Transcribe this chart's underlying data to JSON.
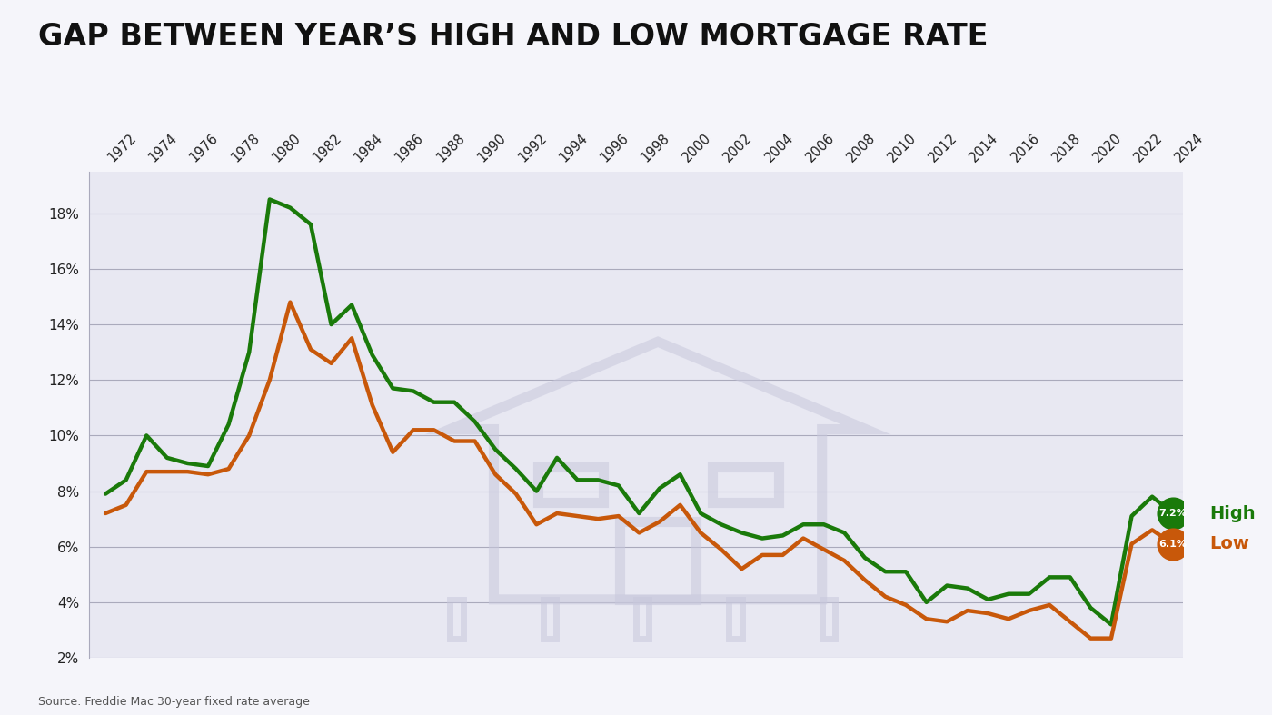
{
  "title": "GAP BETWEEN YEAR’S HIGH AND LOW MORTGAGE RATE",
  "source": "Source: Freddie Mac 30-year fixed rate average",
  "background_color": "#f5f5fa",
  "plot_bg_color": "#e8e8f2",
  "high_color": "#1a7a0a",
  "low_color": "#c8580a",
  "high_label": "High",
  "low_label": "Low",
  "high_end_value": "7.2%",
  "low_end_value": "6.1%",
  "years": [
    1972,
    1973,
    1974,
    1975,
    1976,
    1977,
    1978,
    1979,
    1980,
    1981,
    1982,
    1983,
    1984,
    1985,
    1986,
    1987,
    1988,
    1989,
    1990,
    1991,
    1992,
    1993,
    1994,
    1995,
    1996,
    1997,
    1998,
    1999,
    2000,
    2001,
    2002,
    2003,
    2004,
    2005,
    2006,
    2007,
    2008,
    2009,
    2010,
    2011,
    2012,
    2013,
    2014,
    2015,
    2016,
    2017,
    2018,
    2019,
    2020,
    2021,
    2022,
    2023,
    2024
  ],
  "high_values": [
    7.9,
    8.4,
    10.0,
    9.2,
    9.0,
    8.9,
    10.4,
    13.0,
    18.5,
    18.2,
    17.6,
    14.0,
    14.7,
    12.9,
    11.7,
    11.6,
    11.2,
    11.2,
    10.5,
    9.5,
    8.8,
    8.0,
    9.2,
    8.4,
    8.4,
    8.2,
    7.2,
    8.1,
    8.6,
    7.2,
    6.8,
    6.5,
    6.3,
    6.4,
    6.8,
    6.8,
    6.5,
    5.6,
    5.1,
    5.1,
    4.0,
    4.6,
    4.5,
    4.1,
    4.3,
    4.3,
    4.9,
    4.9,
    3.8,
    3.2,
    7.1,
    7.8,
    7.2
  ],
  "low_values": [
    7.2,
    7.5,
    8.7,
    8.7,
    8.7,
    8.6,
    8.8,
    10.0,
    12.0,
    14.8,
    13.1,
    12.6,
    13.5,
    11.1,
    9.4,
    10.2,
    10.2,
    9.8,
    9.8,
    8.6,
    7.9,
    6.8,
    7.2,
    7.1,
    7.0,
    7.1,
    6.5,
    6.9,
    7.5,
    6.5,
    5.9,
    5.2,
    5.7,
    5.7,
    6.3,
    5.9,
    5.5,
    4.8,
    4.2,
    3.9,
    3.4,
    3.3,
    3.7,
    3.6,
    3.4,
    3.7,
    3.9,
    3.3,
    2.7,
    2.7,
    6.1,
    6.6,
    6.1
  ],
  "ylim": [
    2.0,
    19.5
  ],
  "yticks": [
    2,
    4,
    6,
    8,
    10,
    12,
    14,
    16,
    18
  ],
  "title_fontsize": 24,
  "axis_fontsize": 10.5,
  "line_width": 3.2,
  "marker_size": 26
}
